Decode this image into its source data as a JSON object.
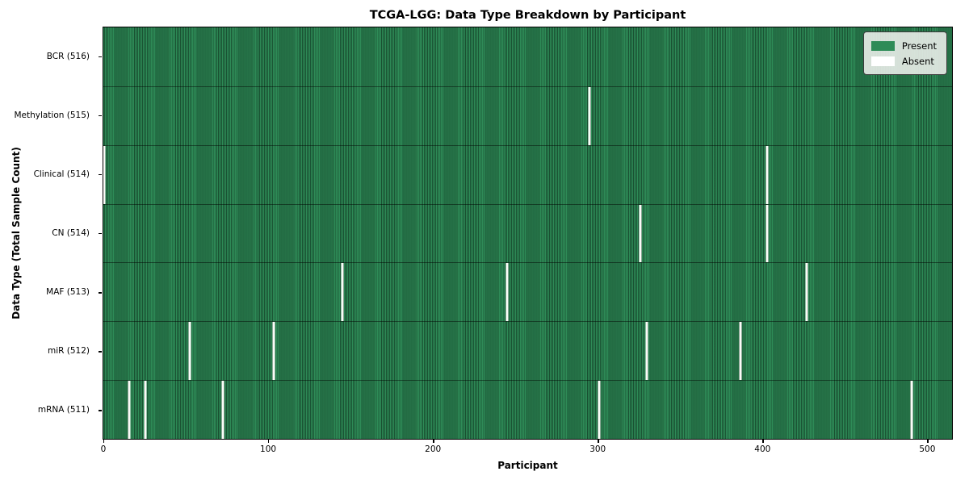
{
  "title": "TCGA-LGG: Data Type Breakdown by Participant",
  "legend": {
    "present_label": "Present",
    "absent_label": "Absent"
  },
  "colors": {
    "present": "#2e8b57",
    "present_edge": "#1d5a38",
    "absent": "#fbfbf8",
    "legend_bg": "#e5eae5"
  },
  "chart_data": {
    "type": "heatmap",
    "title": "TCGA-LGG: Data Type Breakdown by Participant",
    "xlabel": "Participant",
    "ylabel": "Data Type (Total Sample Count)",
    "x_ticks": [
      0,
      100,
      200,
      300,
      400,
      500
    ],
    "n_participants": 516,
    "xlim": [
      -0.5,
      515.5
    ],
    "grid": false,
    "legend_entries": [
      "Present",
      "Absent"
    ],
    "legend_position": "upper right",
    "rows": [
      {
        "label": "BCR (516)",
        "total": 516,
        "absent_participants": []
      },
      {
        "label": "Methylation (515)",
        "total": 515,
        "absent_participants": [
          295
        ]
      },
      {
        "label": "Clinical (514)",
        "total": 514,
        "absent_participants": [
          0,
          403
        ]
      },
      {
        "label": "CN (514)",
        "total": 514,
        "absent_participants": [
          326,
          403
        ]
      },
      {
        "label": "MAF (513)",
        "total": 513,
        "absent_participants": [
          145,
          245,
          427
        ]
      },
      {
        "label": "miR (512)",
        "total": 512,
        "absent_participants": [
          52,
          103,
          330,
          387
        ]
      },
      {
        "label": "mRNA (511)",
        "total": 511,
        "absent_participants": [
          15,
          25,
          72,
          301,
          491
        ]
      }
    ]
  }
}
